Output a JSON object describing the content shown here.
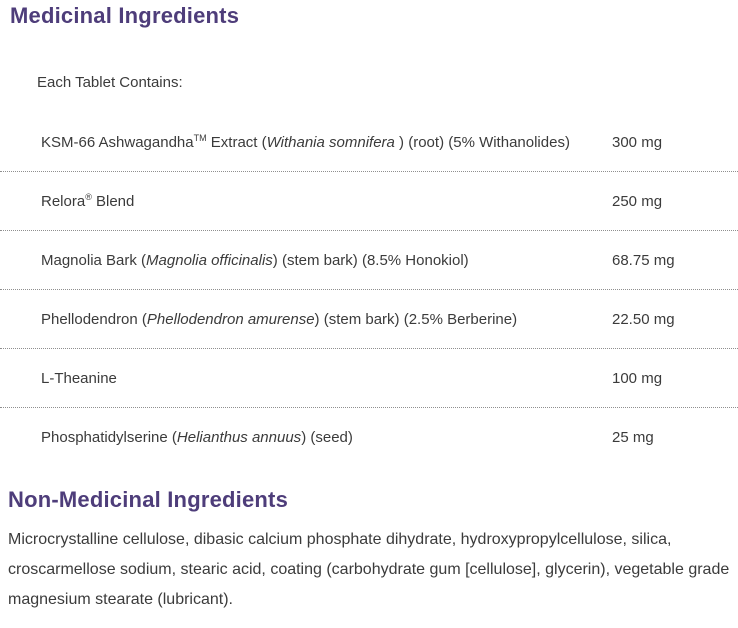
{
  "theme": {
    "heading_color": "#4e3d7a",
    "text_color": "#3b3b3b",
    "separator_color": "#8f8f8f"
  },
  "medicinal": {
    "title": "Medicinal Ingredients",
    "subtitle": "Each Tablet Contains:",
    "rows": [
      {
        "name_segments": [
          {
            "text": "KSM-66 Ashwagandha",
            "style": "normal"
          },
          {
            "text": "TM",
            "style": "sup"
          },
          {
            "text": " Extract (",
            "style": "normal"
          },
          {
            "text": "Withania somnifera",
            "style": "italic"
          },
          {
            "text": " ) (root) (5% Withanolides)",
            "style": "normal"
          }
        ],
        "amount": "300 mg"
      },
      {
        "name_segments": [
          {
            "text": "Relora",
            "style": "normal"
          },
          {
            "text": "®",
            "style": "sup"
          },
          {
            "text": " Blend",
            "style": "normal"
          }
        ],
        "amount": "250 mg"
      },
      {
        "name_segments": [
          {
            "text": "Magnolia Bark (",
            "style": "normal"
          },
          {
            "text": "Magnolia officinalis",
            "style": "italic"
          },
          {
            "text": ") (stem bark) (8.5% Honokiol)",
            "style": "normal"
          }
        ],
        "amount": "68.75 mg"
      },
      {
        "name_segments": [
          {
            "text": "Phellodendron (",
            "style": "normal"
          },
          {
            "text": "Phellodendron amurense",
            "style": "italic"
          },
          {
            "text": ") (stem bark) (2.5% Berberine)",
            "style": "normal"
          }
        ],
        "amount": "22.50 mg"
      },
      {
        "name_segments": [
          {
            "text": "L-Theanine",
            "style": "normal"
          }
        ],
        "amount": "100 mg"
      },
      {
        "name_segments": [
          {
            "text": "Phosphatidylserine (",
            "style": "normal"
          },
          {
            "text": "Helianthus annuus",
            "style": "italic"
          },
          {
            "text": ") (seed)",
            "style": "normal"
          }
        ],
        "amount": "25 mg"
      }
    ]
  },
  "non_medicinal": {
    "title": "Non-Medicinal Ingredients",
    "body": "Microcrystalline cellulose, dibasic calcium phosphate dihydrate, hydroxypropylcellulose, silica, croscarmellose sodium, stearic acid, coating (carbohydrate gum [cellulose], glycerin), vegetable grade magnesium stearate (lubricant)."
  }
}
